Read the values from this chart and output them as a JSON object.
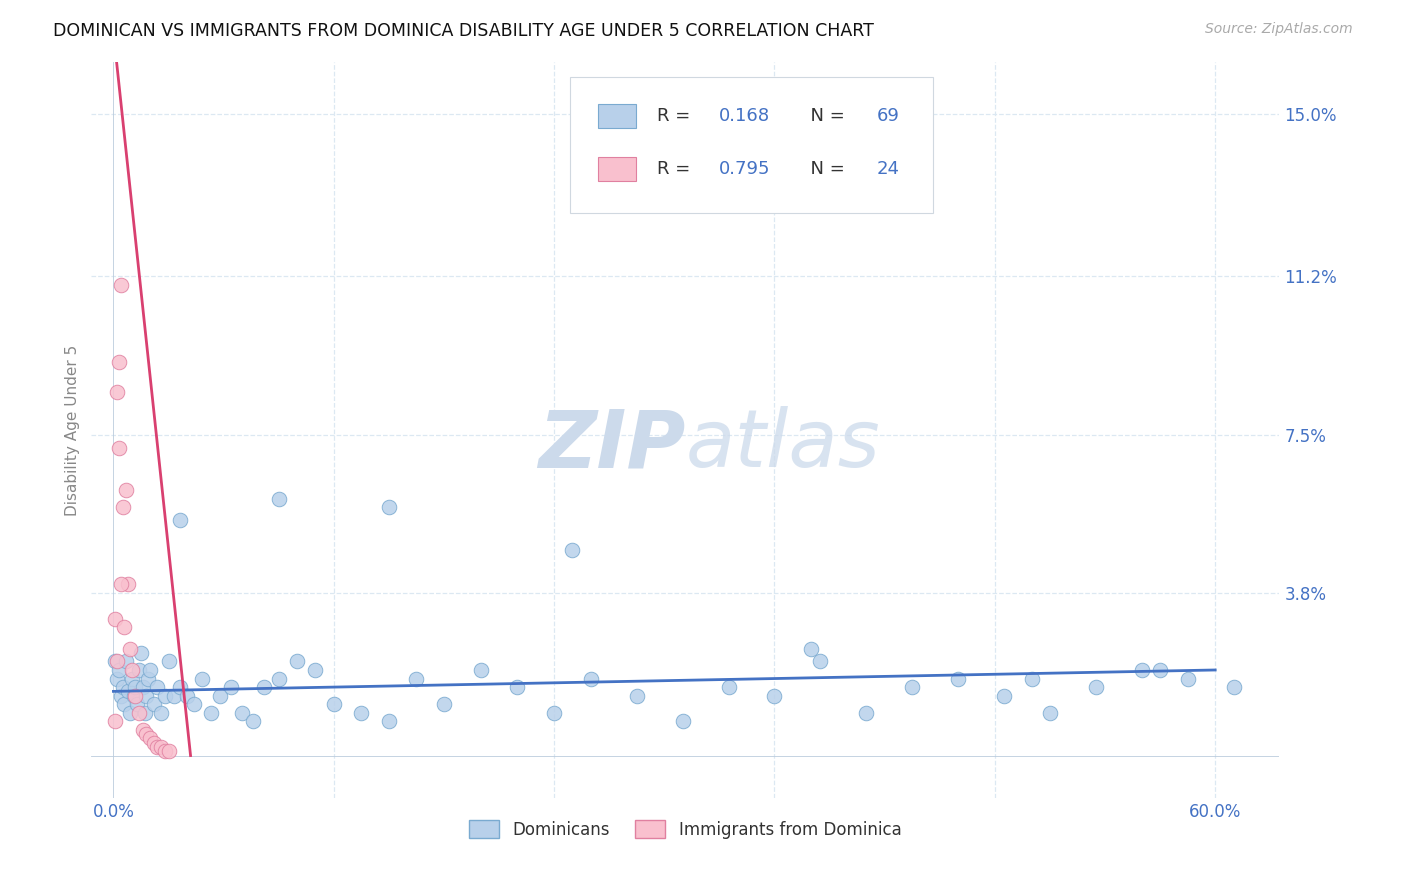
{
  "title": "DOMINICAN VS IMMIGRANTS FROM DOMINICA DISABILITY AGE UNDER 5 CORRELATION CHART",
  "source": "Source: ZipAtlas.com",
  "ylabel": "Disability Age Under 5",
  "yticks": [
    0.0,
    0.038,
    0.075,
    0.112,
    0.15
  ],
  "ytick_labels": [
    "",
    "3.8%",
    "7.5%",
    "11.2%",
    "15.0%"
  ],
  "xticks": [
    0.0,
    0.12,
    0.24,
    0.36,
    0.48,
    0.6
  ],
  "xmin": -0.012,
  "xmax": 0.635,
  "ymin": -0.01,
  "ymax": 0.162,
  "series1_name": "Dominicans",
  "series1_R": "0.168",
  "series1_N": "69",
  "series1_fill": "#b8d0ea",
  "series1_edge": "#7aaad0",
  "series1_line": "#4472c4",
  "series2_name": "Immigrants from Dominica",
  "series2_R": "0.795",
  "series2_N": "24",
  "series2_fill": "#f9c0ce",
  "series2_edge": "#e080a0",
  "series2_line": "#d94070",
  "legend_text_color": "#333333",
  "legend_value_color": "#4472c4",
  "watermark_color": "#ccdaeb",
  "background_color": "#ffffff",
  "grid_color": "#dce8f2",
  "title_color": "#111111",
  "axis_tick_color": "#4472c4",
  "dom_x": [
    0.001,
    0.002,
    0.003,
    0.004,
    0.005,
    0.006,
    0.007,
    0.008,
    0.009,
    0.01,
    0.011,
    0.012,
    0.013,
    0.014,
    0.015,
    0.016,
    0.017,
    0.018,
    0.019,
    0.02,
    0.022,
    0.024,
    0.026,
    0.028,
    0.03,
    0.033,
    0.036,
    0.04,
    0.044,
    0.048,
    0.053,
    0.058,
    0.064,
    0.07,
    0.076,
    0.082,
    0.09,
    0.1,
    0.11,
    0.12,
    0.135,
    0.15,
    0.165,
    0.18,
    0.2,
    0.22,
    0.24,
    0.26,
    0.285,
    0.31,
    0.335,
    0.36,
    0.385,
    0.41,
    0.435,
    0.46,
    0.485,
    0.51,
    0.535,
    0.56,
    0.585,
    0.61,
    0.036,
    0.09,
    0.15,
    0.25,
    0.38,
    0.5,
    0.57
  ],
  "dom_y": [
    0.022,
    0.018,
    0.02,
    0.014,
    0.016,
    0.012,
    0.022,
    0.015,
    0.01,
    0.018,
    0.014,
    0.016,
    0.012,
    0.02,
    0.024,
    0.016,
    0.01,
    0.014,
    0.018,
    0.02,
    0.012,
    0.016,
    0.01,
    0.014,
    0.022,
    0.014,
    0.016,
    0.014,
    0.012,
    0.018,
    0.01,
    0.014,
    0.016,
    0.01,
    0.008,
    0.016,
    0.018,
    0.022,
    0.02,
    0.012,
    0.01,
    0.008,
    0.018,
    0.012,
    0.02,
    0.016,
    0.01,
    0.018,
    0.014,
    0.008,
    0.016,
    0.014,
    0.022,
    0.01,
    0.016,
    0.018,
    0.014,
    0.01,
    0.016,
    0.02,
    0.018,
    0.016,
    0.055,
    0.06,
    0.058,
    0.048,
    0.025,
    0.018,
    0.02
  ],
  "imm_x": [
    0.001,
    0.002,
    0.003,
    0.004,
    0.005,
    0.006,
    0.007,
    0.008,
    0.009,
    0.01,
    0.012,
    0.014,
    0.016,
    0.018,
    0.02,
    0.022,
    0.024,
    0.026,
    0.028,
    0.03,
    0.002,
    0.003,
    0.001,
    0.004
  ],
  "imm_y": [
    0.032,
    0.022,
    0.092,
    0.11,
    0.058,
    0.03,
    0.062,
    0.04,
    0.025,
    0.02,
    0.014,
    0.01,
    0.006,
    0.005,
    0.004,
    0.003,
    0.002,
    0.002,
    0.001,
    0.001,
    0.085,
    0.072,
    0.008,
    0.04
  ],
  "dom_trend": [
    0.0,
    0.6,
    0.015,
    0.02
  ],
  "imm_trend_x": [
    0.001,
    0.042
  ],
  "imm_trend_y": [
    0.165,
    0.0
  ]
}
